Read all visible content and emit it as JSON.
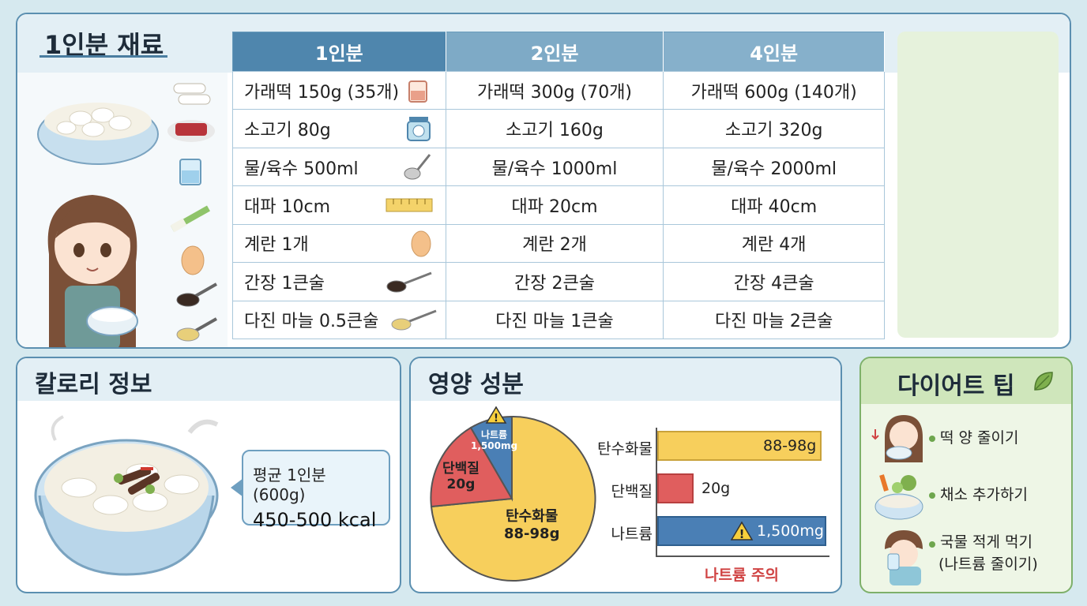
{
  "ingredients": {
    "title": "1인분 재료",
    "columns": [
      "1인분",
      "2인분",
      "4인분"
    ],
    "rows": [
      {
        "one": "가래떡 150g (35개)",
        "two": "가래떡 300g (70개)",
        "four": "가래떡 600g (140개)"
      },
      {
        "one": "소고기 80g",
        "two": "소고기 160g",
        "four": "소고기 320g"
      },
      {
        "one": "물/육수 500ml",
        "two": "물/육수 1000ml",
        "four": "물/육수 2000ml"
      },
      {
        "one": "대파 10cm",
        "two": "대파 20cm",
        "four": "대파 40cm"
      },
      {
        "one": "계란 1개",
        "two": "계란 2개",
        "four": "계란 4개"
      },
      {
        "one": "간장 1큰술",
        "two": "간장 2큰술",
        "four": "간장 4큰술"
      },
      {
        "one": "다진 마늘 0.5큰술",
        "two": "다진 마늘 1큰술",
        "four": "다진 마늘 2큰술"
      }
    ]
  },
  "calorie": {
    "title": "칼로리 정보",
    "serving": "평균 1인분 (600g)",
    "kcal": "450-500 kcal"
  },
  "nutrition": {
    "title": "영양 성분",
    "warning": "나트륨 주의",
    "colors": {
      "carb": "#f7cf5c",
      "protein": "#e05e5e",
      "sodium": "#4a7fb5"
    }
  },
  "chart_data": {
    "type": "bar",
    "categories": [
      "탄수화물",
      "단백질",
      "나트륨"
    ],
    "values": [
      "88-98g",
      "20g",
      "1,500mg"
    ],
    "pie": [
      {
        "label": "탄수화물",
        "value": "88-98g"
      },
      {
        "label": "단백질",
        "value": "20g"
      },
      {
        "label": "나트륨",
        "value": "1,500mg"
      }
    ]
  },
  "diet": {
    "title": "다이어트 팁",
    "tips": [
      "떡 양 줄이기",
      "채소 추가하기",
      "국물 적게 먹기",
      "(나트륨 줄이기)"
    ]
  }
}
